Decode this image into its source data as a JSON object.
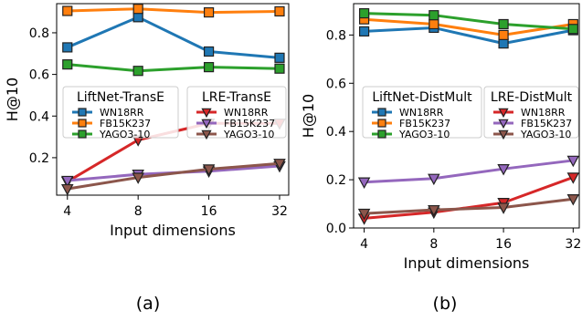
{
  "chart_data": [
    {
      "type": "line",
      "caption": "(a)",
      "xlabel": "Input dimensions",
      "ylabel": "H@10",
      "x": [
        4,
        8,
        16,
        32
      ],
      "x_scale": "log2",
      "xlim": [
        3.6,
        35
      ],
      "ylim": [
        0.02,
        0.94
      ],
      "yticks": [
        0.2,
        0.4,
        0.6,
        0.8
      ],
      "grid": false,
      "legend_groups": [
        {
          "title": "LiftNet-TransE",
          "placement": "center-left",
          "marker": "square"
        },
        {
          "title": "LRE-TransE",
          "placement": "center-right",
          "marker": "triangle-down"
        }
      ],
      "series": [
        {
          "name": "WN18RR",
          "group": 0,
          "color": "#1f77b4",
          "values": [
            0.73,
            0.875,
            0.71,
            0.68
          ]
        },
        {
          "name": "FB15K237",
          "group": 0,
          "color": "#ff7f0e",
          "values": [
            0.905,
            0.915,
            0.898,
            0.903
          ]
        },
        {
          "name": "YAGO3-10",
          "group": 0,
          "color": "#2ca02c",
          "values": [
            0.648,
            0.617,
            0.635,
            0.628
          ]
        },
        {
          "name": "WN18RR",
          "group": 1,
          "color": "#d62728",
          "values": [
            0.085,
            0.285,
            0.365,
            0.365
          ]
        },
        {
          "name": "FB15K237",
          "group": 1,
          "color": "#9467bd",
          "values": [
            0.09,
            0.12,
            0.135,
            0.16
          ]
        },
        {
          "name": "YAGO3-10",
          "group": 1,
          "color": "#8c564b",
          "values": [
            0.05,
            0.105,
            0.145,
            0.172
          ]
        }
      ]
    },
    {
      "type": "line",
      "caption": "(b)",
      "xlabel": "Input dimensions",
      "ylabel": "H@10",
      "x": [
        4,
        8,
        16,
        32
      ],
      "x_scale": "log2",
      "xlim": [
        3.6,
        34
      ],
      "ylim": [
        0.0,
        0.93
      ],
      "yticks": [
        0.0,
        0.2,
        0.4,
        0.6,
        0.8
      ],
      "grid": false,
      "legend_groups": [
        {
          "title": "LiftNet-DistMult",
          "placement": "center-left",
          "marker": "square"
        },
        {
          "title": "LRE-DistMult",
          "placement": "center-right",
          "marker": "triangle-down"
        }
      ],
      "series": [
        {
          "name": "WN18RR",
          "group": 0,
          "color": "#1f77b4",
          "values": [
            0.815,
            0.83,
            0.765,
            0.82
          ]
        },
        {
          "name": "FB15K237",
          "group": 0,
          "color": "#ff7f0e",
          "values": [
            0.865,
            0.845,
            0.8,
            0.845
          ]
        },
        {
          "name": "YAGO3-10",
          "group": 0,
          "color": "#2ca02c",
          "values": [
            0.89,
            0.882,
            0.845,
            0.825
          ]
        },
        {
          "name": "WN18RR",
          "group": 1,
          "color": "#d62728",
          "values": [
            0.04,
            0.065,
            0.105,
            0.21
          ]
        },
        {
          "name": "FB15K237",
          "group": 1,
          "color": "#9467bd",
          "values": [
            0.19,
            0.205,
            0.245,
            0.28
          ]
        },
        {
          "name": "YAGO3-10",
          "group": 1,
          "color": "#8c564b",
          "values": [
            0.06,
            0.075,
            0.085,
            0.12
          ]
        }
      ]
    }
  ]
}
